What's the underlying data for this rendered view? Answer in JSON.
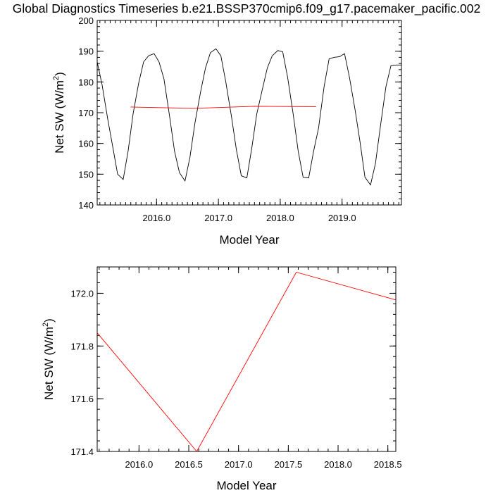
{
  "title": "Global Diagnostics Timeseries b.e21.BSSP370cmip6.f09_g17.pacemaker_pacific.002",
  "chart_data": [
    {
      "type": "line",
      "xlabel": "Model Year",
      "ylabel_main": "Net SW (W/m",
      "ylabel_sup": "2",
      "ylabel_close": ")",
      "xlim": [
        2015.04,
        2019.96
      ],
      "ylim": [
        140,
        200
      ],
      "xticks": [
        {
          "v": 2016.0,
          "label": "2016.0"
        },
        {
          "v": 2017.0,
          "label": "2017.0"
        },
        {
          "v": 2018.0,
          "label": "2018.0"
        },
        {
          "v": 2019.0,
          "label": "2019.0"
        }
      ],
      "yticks": [
        {
          "v": 140,
          "label": "140"
        },
        {
          "v": 150,
          "label": "150"
        },
        {
          "v": 160,
          "label": "160"
        },
        {
          "v": 170,
          "label": "170"
        },
        {
          "v": 180,
          "label": "180"
        },
        {
          "v": 190,
          "label": "190"
        },
        {
          "v": 200,
          "label": "200"
        }
      ],
      "series": [
        {
          "color": "#000000",
          "x": [
            2015.04,
            2015.12,
            2015.21,
            2015.29,
            2015.37,
            2015.46,
            2015.54,
            2015.62,
            2015.71,
            2015.79,
            2015.87,
            2015.96,
            2016.04,
            2016.12,
            2016.21,
            2016.29,
            2016.37,
            2016.46,
            2016.54,
            2016.62,
            2016.71,
            2016.79,
            2016.87,
            2016.96,
            2017.04,
            2017.12,
            2017.21,
            2017.29,
            2017.37,
            2017.46,
            2017.54,
            2017.62,
            2017.71,
            2017.79,
            2017.87,
            2017.96,
            2018.04,
            2018.12,
            2018.21,
            2018.29,
            2018.37,
            2018.46,
            2018.54,
            2018.62,
            2018.71,
            2018.79,
            2018.87,
            2018.96,
            2019.04,
            2019.12,
            2019.21,
            2019.29,
            2019.37,
            2019.46,
            2019.54,
            2019.62,
            2019.71,
            2019.79,
            2019.87,
            2019.96
          ],
          "values": [
            186.5,
            179.0,
            168.0,
            159.0,
            150.0,
            148.3,
            157.5,
            169.5,
            179.5,
            186.5,
            188.5,
            189.2,
            186.5,
            181.0,
            169.0,
            157.5,
            150.5,
            147.8,
            155.5,
            166.5,
            176.5,
            184.5,
            189.5,
            190.8,
            188.5,
            180.0,
            169.0,
            158.0,
            149.5,
            148.8,
            158.5,
            169.5,
            177.5,
            184.5,
            188.5,
            190.2,
            189.8,
            181.5,
            169.5,
            157.5,
            149.0,
            148.8,
            157.5,
            165.0,
            178.5,
            187.5,
            188.0,
            188.2,
            189.2,
            181.5,
            171.0,
            160.5,
            149.0,
            146.5,
            153.5,
            165.5,
            178.5,
            185.3,
            185.5,
            185.5
          ]
        },
        {
          "color": "#ff0000",
          "x": [
            2015.58,
            2016.58,
            2017.58,
            2018.58
          ],
          "values": [
            171.85,
            171.4,
            172.08,
            171.97
          ]
        }
      ]
    },
    {
      "type": "line",
      "xlabel": "Model Year",
      "ylabel_main": "Net SW (W/m",
      "ylabel_sup": "2",
      "ylabel_close": ")",
      "xlim": [
        2015.58,
        2018.58
      ],
      "ylim": [
        171.4,
        172.1
      ],
      "xticks": [
        {
          "v": 2016.0,
          "label": "2016.0"
        },
        {
          "v": 2016.5,
          "label": "2016.5"
        },
        {
          "v": 2017.0,
          "label": "2017.0"
        },
        {
          "v": 2017.5,
          "label": "2017.5"
        },
        {
          "v": 2018.0,
          "label": "2018.0"
        },
        {
          "v": 2018.5,
          "label": "2018.5"
        }
      ],
      "yticks": [
        {
          "v": 171.4,
          "label": "171.4"
        },
        {
          "v": 171.6,
          "label": "171.6"
        },
        {
          "v": 171.8,
          "label": "171.8"
        },
        {
          "v": 172.0,
          "label": "172.0"
        }
      ],
      "series": [
        {
          "color": "#ff0000",
          "x": [
            2015.58,
            2016.58,
            2017.58,
            2018.58
          ],
          "values": [
            171.85,
            171.4,
            172.08,
            171.975
          ]
        }
      ]
    }
  ]
}
